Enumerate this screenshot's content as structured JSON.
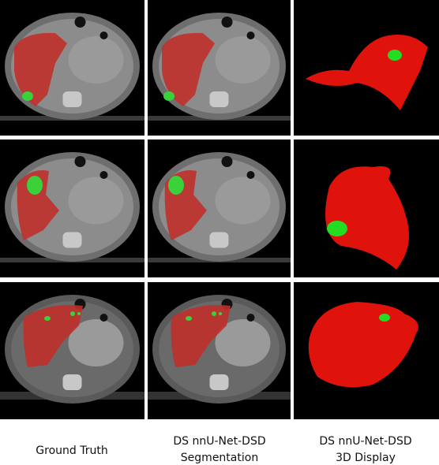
{
  "columns": [
    {
      "caption": [
        "Ground Truth"
      ]
    },
    {
      "caption": [
        "DS nnU-Net-DSD",
        "Segmentation"
      ]
    },
    {
      "caption": [
        "DS nnU-Net-DSD",
        "3D Display"
      ]
    }
  ]
}
